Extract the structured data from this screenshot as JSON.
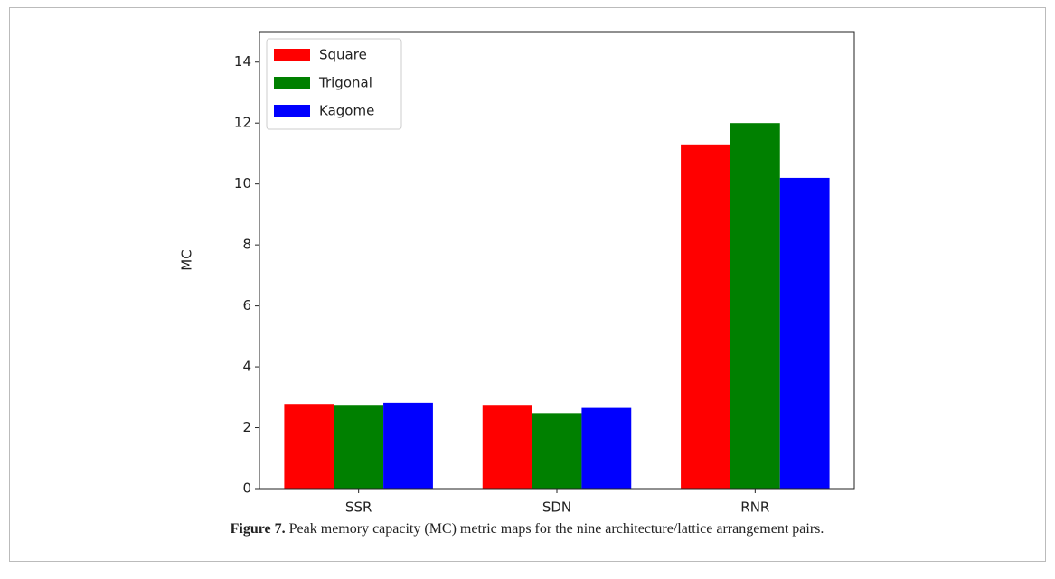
{
  "chart_data": {
    "type": "bar",
    "y_label": "MC",
    "categories": [
      "SSR",
      "SDN",
      "RNR"
    ],
    "series": [
      {
        "name": "Square",
        "color": "#ff0000",
        "values": [
          2.78,
          2.75,
          11.3
        ]
      },
      {
        "name": "Trigonal",
        "color": "#008000",
        "values": [
          2.75,
          2.48,
          12.0
        ]
      },
      {
        "name": "Kagome",
        "color": "#0000ff",
        "values": [
          2.82,
          2.65,
          10.2
        ]
      }
    ],
    "ylim": [
      0,
      15
    ],
    "yticks": [
      0,
      2,
      4,
      6,
      8,
      10,
      12,
      14
    ],
    "legend": "upper left"
  },
  "caption": {
    "label": "Figure 7.",
    "text": "Peak memory capacity (MC) metric maps for the nine architecture/lattice arrangement pairs."
  }
}
